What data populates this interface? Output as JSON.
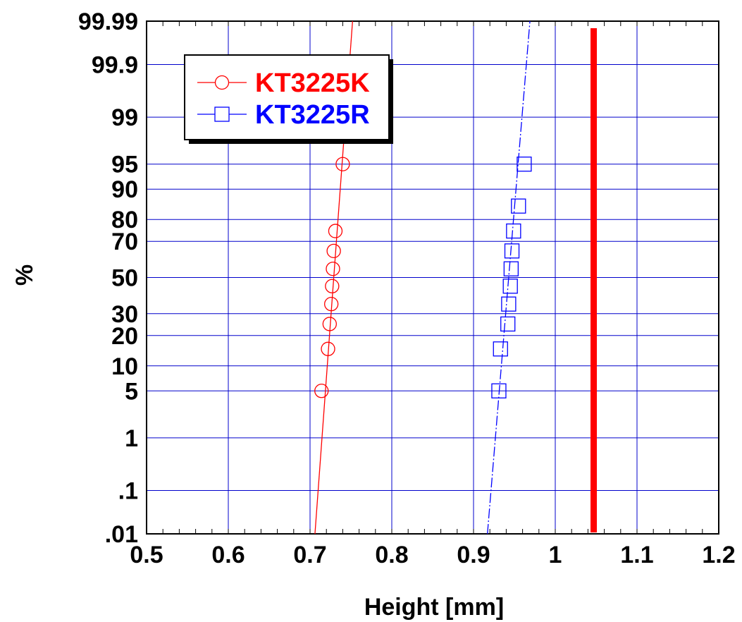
{
  "chart_data": {
    "type": "scatter",
    "title": "",
    "xlabel": "Height [mm]",
    "ylabel": "%",
    "x_scale": "linear",
    "y_scale": "normal-probability",
    "xlim": [
      0.5,
      1.2
    ],
    "ylim": [
      0.01,
      99.99
    ],
    "x_ticks": [
      0.5,
      0.6,
      0.7,
      0.8,
      0.9,
      1.0,
      1.1,
      1.2
    ],
    "x_tick_labels": [
      "0.5",
      "0.6",
      "0.7",
      "0.8",
      "0.9",
      "1",
      "1.1",
      "1.2"
    ],
    "y_ticks": [
      0.01,
      0.1,
      1,
      5,
      10,
      20,
      30,
      50,
      70,
      80,
      90,
      95,
      99,
      99.9,
      99.99
    ],
    "y_tick_labels": [
      ".01",
      ".1",
      "1",
      "5",
      "10",
      "20",
      "30",
      "50",
      "70",
      "80",
      "90",
      "95",
      "99",
      "99.9",
      "99.99"
    ],
    "grid": true,
    "legend_position": "top-left",
    "series": [
      {
        "name": "KT3225K",
        "color": "#ff0000",
        "marker": "circle",
        "x": [
          0.714,
          0.722,
          0.724,
          0.726,
          0.727,
          0.728,
          0.729,
          0.731,
          0.74
        ],
        "y": [
          5,
          15,
          25,
          35,
          45,
          55,
          65,
          75,
          95
        ],
        "fit_line": {
          "x": [
            0.706,
            0.752
          ],
          "y": [
            0.01,
            99.99
          ]
        }
      },
      {
        "name": "KT3225R",
        "color": "#0000ff",
        "marker": "square",
        "x": [
          0.931,
          0.933,
          0.942,
          0.943,
          0.945,
          0.946,
          0.947,
          0.949,
          0.955,
          0.962
        ],
        "y": [
          5,
          15,
          25,
          35,
          45,
          55,
          65,
          75,
          85,
          95
        ],
        "fit_line": {
          "x": [
            0.917,
            0.969
          ],
          "y": [
            0.01,
            99.99
          ]
        }
      }
    ],
    "reference_line": {
      "x": 1.047,
      "color": "#ff0000"
    }
  }
}
